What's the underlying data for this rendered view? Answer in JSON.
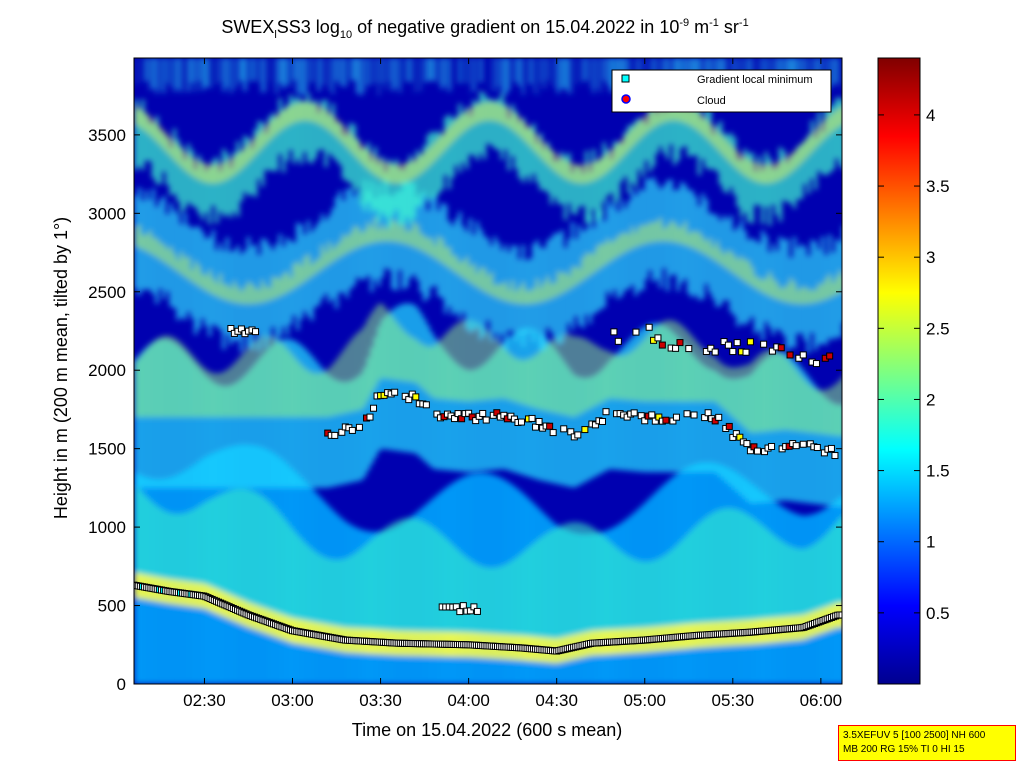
{
  "chart_data": {
    "type": "heatmap",
    "title": {
      "pre": "SWEX",
      "sub1": "l",
      "mid1": "SS3 log",
      "sub2": "10",
      "mid2": " of negative gradient on 15.04.2022 in 10",
      "sup1": "-9",
      "mid3": " m",
      "sup2": "-1",
      "mid4": " sr",
      "sup3": "-1"
    },
    "xlabel": "Time on 15.04.2022 (600 s mean)",
    "ylabel": "Height in m (200 m mean, tilted by 1°)",
    "x_ticks": [
      "02:30",
      "03:00",
      "03:30",
      "04:00",
      "04:30",
      "05:00",
      "05:30",
      "06:00"
    ],
    "x_tick_hours": [
      2.5,
      3.0,
      3.5,
      4.0,
      4.5,
      5.0,
      5.5,
      6.0
    ],
    "xlim_hours": [
      2.1,
      6.12
    ],
    "y_ticks": [
      "0",
      "500",
      "1000",
      "1500",
      "2000",
      "2500",
      "3000",
      "3500"
    ],
    "y_tick_values": [
      0,
      500,
      1000,
      1500,
      2000,
      2500,
      3000,
      3500
    ],
    "ylim": [
      0,
      3990
    ],
    "colorbar": {
      "ticks": [
        "0.5",
        "1",
        "1.5",
        "2",
        "2.5",
        "3",
        "3.5",
        "4"
      ],
      "tick_values": [
        0.5,
        1.0,
        1.5,
        2.0,
        2.5,
        3.0,
        3.5,
        4.0
      ],
      "range": [
        0.0,
        4.4
      ],
      "colormap": "jet"
    },
    "legend": {
      "position": "top-right",
      "entries": [
        {
          "label": "Gradient local minimum",
          "marker": "square",
          "color": "#00ffff"
        },
        {
          "label": "Cloud",
          "marker": "circle",
          "color": "#ff0000"
        }
      ]
    },
    "layers": [
      {
        "name": "surface layer top",
        "points": [
          [
            2.1,
            630
          ],
          [
            2.3,
            590
          ],
          [
            2.5,
            560
          ],
          [
            2.75,
            440
          ],
          [
            3.0,
            340
          ],
          [
            3.3,
            280
          ],
          [
            3.6,
            260
          ],
          [
            4.0,
            250
          ],
          [
            4.3,
            230
          ],
          [
            4.5,
            210
          ],
          [
            4.7,
            260
          ],
          [
            5.0,
            280
          ],
          [
            5.3,
            310
          ],
          [
            5.6,
            330
          ],
          [
            5.9,
            360
          ],
          [
            6.1,
            440
          ]
        ]
      },
      {
        "name": "gradient layer ~1600 m",
        "points": [
          [
            3.2,
            1600
          ],
          [
            3.4,
            1650
          ],
          [
            3.5,
            1850
          ],
          [
            3.7,
            1820
          ],
          [
            3.8,
            1720
          ],
          [
            4.0,
            1700
          ],
          [
            4.2,
            1720
          ],
          [
            4.4,
            1650
          ],
          [
            4.6,
            1600
          ],
          [
            4.8,
            1720
          ],
          [
            5.0,
            1700
          ],
          [
            5.2,
            1700
          ],
          [
            5.4,
            1700
          ],
          [
            5.6,
            1500
          ],
          [
            5.8,
            1520
          ],
          [
            6.1,
            1480
          ]
        ]
      },
      {
        "name": "gradient layer ~2200 m",
        "points": [
          [
            4.8,
            2200
          ],
          [
            5.0,
            2250
          ],
          [
            5.2,
            2150
          ],
          [
            5.4,
            2150
          ],
          [
            5.6,
            2150
          ],
          [
            5.8,
            2100
          ],
          [
            6.0,
            2050
          ],
          [
            6.1,
            2150
          ]
        ]
      }
    ]
  },
  "info_box": {
    "line1": "3.5XEFUV 5 [100 2500] NH 600",
    "line2": "MB 200 RG 15% TI 0 HI 15"
  }
}
